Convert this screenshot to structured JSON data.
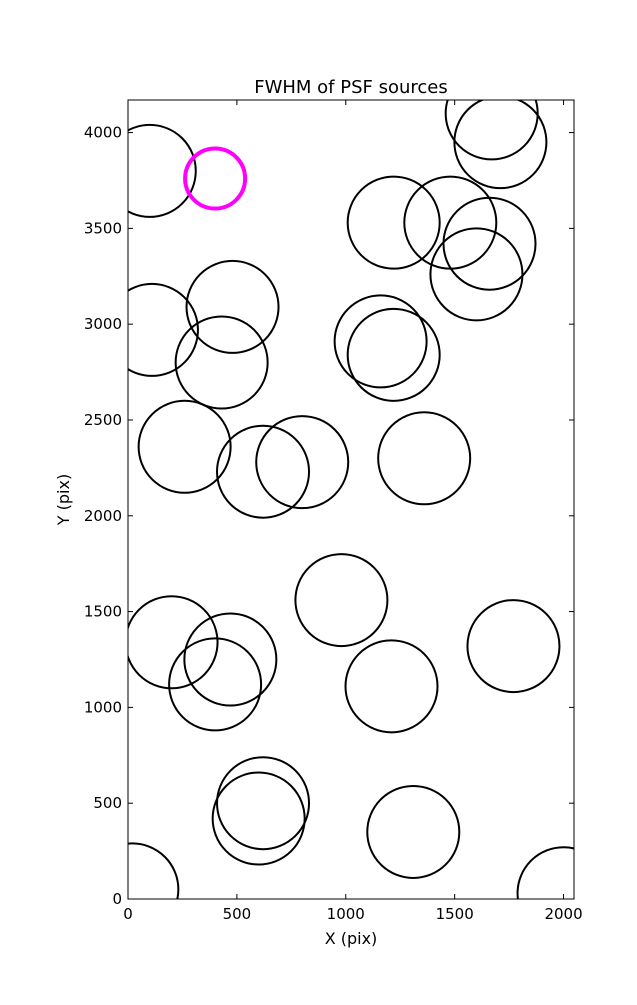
{
  "chart_data": {
    "type": "scatter",
    "title": "FWHM of PSF sources",
    "xlabel": "X (pix)",
    "ylabel": "Y (pix)",
    "xlim": [
      0,
      2048
    ],
    "ylim": [
      0,
      4170
    ],
    "xticks": [
      0,
      500,
      1000,
      1500,
      2000
    ],
    "yticks": [
      0,
      500,
      1000,
      1500,
      2000,
      2500,
      3000,
      3500,
      4000
    ],
    "grid": false,
    "marker": "open circle",
    "colors": {
      "default": "#000000",
      "highlight": "#ff00ff"
    },
    "series": [
      {
        "color": "#000000",
        "points": [
          {
            "x": 100,
            "y": 3800
          },
          {
            "x": 1220,
            "y": 3530
          },
          {
            "x": 1480,
            "y": 3530
          },
          {
            "x": 1660,
            "y": 3420
          },
          {
            "x": 1600,
            "y": 3260
          },
          {
            "x": 1670,
            "y": 4100
          },
          {
            "x": 1710,
            "y": 3950
          },
          {
            "x": 110,
            "y": 2970
          },
          {
            "x": 480,
            "y": 3090
          },
          {
            "x": 430,
            "y": 2800
          },
          {
            "x": 1160,
            "y": 2910
          },
          {
            "x": 1220,
            "y": 2840
          },
          {
            "x": 260,
            "y": 2360
          },
          {
            "x": 620,
            "y": 2230
          },
          {
            "x": 800,
            "y": 2280
          },
          {
            "x": 1360,
            "y": 2300
          },
          {
            "x": 200,
            "y": 1340
          },
          {
            "x": 470,
            "y": 1250
          },
          {
            "x": 400,
            "y": 1120
          },
          {
            "x": 980,
            "y": 1560
          },
          {
            "x": 1210,
            "y": 1110
          },
          {
            "x": 1770,
            "y": 1320
          },
          {
            "x": 620,
            "y": 500
          },
          {
            "x": 600,
            "y": 420
          },
          {
            "x": 1310,
            "y": 350
          },
          {
            "x": 20,
            "y": 50
          },
          {
            "x": 2000,
            "y": 30
          }
        ]
      },
      {
        "color": "#ff00ff",
        "points": [
          {
            "x": 400,
            "y": 3760
          }
        ]
      }
    ]
  }
}
